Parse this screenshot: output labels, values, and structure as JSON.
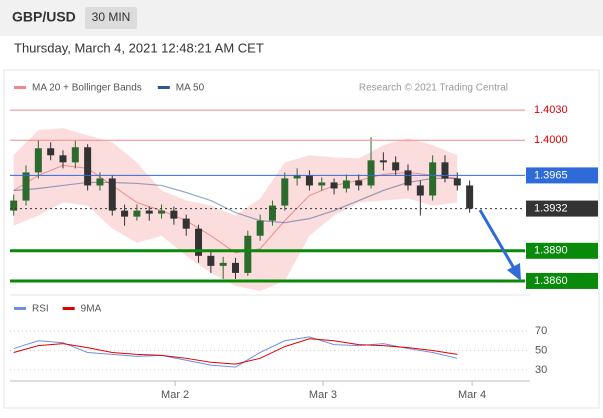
{
  "header": {
    "symbol": "GBP/USD",
    "interval": "30 MIN",
    "timestamp": "Thursday, March 4, 2021 12:48:21 AM CET"
  },
  "chart_data": [
    {
      "type": "candlestick",
      "legend": [
        {
          "name": "MA 20 + Bollinger Bands",
          "color": "#f08a8a"
        },
        {
          "name": "MA 50",
          "color": "#2f5597"
        }
      ],
      "credit": "Research © 2021 Trading Central",
      "x": [
        0,
        1,
        2,
        3,
        4,
        5,
        6,
        7,
        8,
        9,
        10,
        11,
        12,
        13,
        14,
        15,
        16,
        17,
        18,
        19,
        20,
        21,
        22,
        23,
        24,
        25,
        26,
        27,
        28,
        29,
        30,
        31,
        32,
        33,
        34,
        35,
        36,
        37
      ],
      "open": [
        1.393,
        1.394,
        1.3968,
        1.3992,
        1.3985,
        1.3978,
        1.3993,
        1.3955,
        1.3962,
        1.393,
        1.3924,
        1.393,
        1.3927,
        1.393,
        1.3922,
        1.3912,
        1.3885,
        1.3875,
        1.3878,
        1.3868,
        1.3905,
        1.392,
        1.3935,
        1.3962,
        1.3965,
        1.3955,
        1.3958,
        1.3952,
        1.396,
        1.3955,
        1.398,
        1.3978,
        1.397,
        1.3955,
        1.3945,
        1.3978,
        1.3962,
        1.3955
      ],
      "high": [
        1.3946,
        1.3975,
        1.4,
        1.3998,
        1.399,
        1.4,
        1.3996,
        1.3968,
        1.3965,
        1.3936,
        1.3936,
        1.3934,
        1.3936,
        1.3934,
        1.3926,
        1.3916,
        1.389,
        1.3884,
        1.3883,
        1.391,
        1.3926,
        1.394,
        1.3968,
        1.3972,
        1.397,
        1.3963,
        1.3962,
        1.3966,
        1.3966,
        1.4003,
        1.3988,
        1.3984,
        1.3976,
        1.396,
        1.3985,
        1.3985,
        1.3968,
        1.396
      ],
      "low": [
        1.3925,
        1.3935,
        1.3962,
        1.398,
        1.3972,
        1.3972,
        1.395,
        1.395,
        1.3925,
        1.3915,
        1.392,
        1.392,
        1.3922,
        1.3916,
        1.3905,
        1.3878,
        1.3868,
        1.3862,
        1.3862,
        1.3865,
        1.39,
        1.3915,
        1.393,
        1.3955,
        1.395,
        1.395,
        1.3946,
        1.3948,
        1.395,
        1.3952,
        1.397,
        1.3965,
        1.395,
        1.3925,
        1.394,
        1.3958,
        1.395,
        1.3928
      ],
      "close": [
        1.394,
        1.3968,
        1.3992,
        1.3985,
        1.3978,
        1.3993,
        1.3955,
        1.3962,
        1.393,
        1.3924,
        1.393,
        1.3927,
        1.393,
        1.3922,
        1.3912,
        1.3885,
        1.3875,
        1.3878,
        1.3868,
        1.3905,
        1.392,
        1.3935,
        1.3962,
        1.3965,
        1.3955,
        1.3958,
        1.3952,
        1.396,
        1.3955,
        1.398,
        1.3978,
        1.397,
        1.3955,
        1.3945,
        1.3978,
        1.3962,
        1.3955,
        1.3932
      ],
      "up_color": "#2d6a2d",
      "down_color": "#333333",
      "overlay_x": [
        0,
        2,
        4,
        6,
        8,
        10,
        12,
        14,
        16,
        18,
        20,
        22,
        24,
        26,
        28,
        30,
        32,
        34,
        36
      ],
      "ma20": [
        1.395,
        1.3965,
        1.3975,
        1.3972,
        1.3955,
        1.3938,
        1.393,
        1.392,
        1.3905,
        1.3888,
        1.3892,
        1.392,
        1.3945,
        1.3955,
        1.396,
        1.3966,
        1.3968,
        1.3965,
        1.3962
      ],
      "band_upper": [
        1.3985,
        1.401,
        1.4012,
        1.4005,
        1.3998,
        1.3978,
        1.395,
        1.394,
        1.3935,
        1.3925,
        1.3942,
        1.3978,
        1.3985,
        1.3983,
        1.3982,
        1.3995,
        1.4002,
        1.3995,
        1.3985
      ],
      "band_lower": [
        1.3915,
        1.3925,
        1.3938,
        1.3935,
        1.3912,
        1.3898,
        1.3905,
        1.3885,
        1.3868,
        1.3855,
        1.385,
        1.386,
        1.3905,
        1.3925,
        1.3938,
        1.394,
        1.3942,
        1.3935,
        1.3938
      ],
      "band_color": "#fbd5d5",
      "ma50": [
        1.395,
        1.3952,
        1.3955,
        1.3958,
        1.3958,
        1.3957,
        1.3955,
        1.3948,
        1.394,
        1.3928,
        1.392,
        1.3918,
        1.3922,
        1.393,
        1.394,
        1.395,
        1.3958,
        1.3962,
        1.3962
      ],
      "levels": [
        {
          "value": 1.403,
          "label": "1.4030",
          "color": "#f08a8a",
          "text_color": "#e00000",
          "boxed": false,
          "width": 1
        },
        {
          "value": 1.4,
          "label": "1.4000",
          "color": "#f08a8a",
          "text_color": "#e00000",
          "boxed": false,
          "width": 1
        },
        {
          "value": 1.3965,
          "label": "1.3965",
          "color": "#2f6bd8",
          "text_color": "#ffffff",
          "boxed": true,
          "width": 1
        },
        {
          "value": 1.3932,
          "label": "1.3932",
          "color": "#333333",
          "text_color": "#ffffff",
          "boxed": true,
          "width": 1,
          "dashed": true
        },
        {
          "value": 1.389,
          "label": "1.3890",
          "color": "#0a8a0a",
          "text_color": "#ffffff",
          "boxed": true,
          "width": 3
        },
        {
          "value": 1.386,
          "label": "1.3860",
          "color": "#0a8a0a",
          "text_color": "#ffffff",
          "boxed": true,
          "width": 3
        }
      ],
      "xlim": [
        -0.3,
        41.9
      ],
      "ylim": [
        1.3851,
        1.4045
      ],
      "xticks": [
        {
          "value": 13.1,
          "label": "Mar 2"
        },
        {
          "value": 25.1,
          "label": "Mar 3"
        },
        {
          "value": 37.2,
          "label": "Mar 4"
        }
      ]
    },
    {
      "type": "line",
      "x": [
        0,
        2,
        4,
        6,
        8,
        10,
        12,
        14,
        16,
        18,
        20,
        22,
        24,
        26,
        28,
        30,
        32,
        34,
        36
      ],
      "series": [
        {
          "name": "RSI",
          "color": "#6f8fe0",
          "values": [
            52,
            60,
            58,
            48,
            46,
            44,
            45,
            40,
            35,
            33,
            48,
            60,
            64,
            56,
            55,
            57,
            52,
            48,
            42
          ]
        },
        {
          "name": "9MA",
          "color": "#e00000",
          "values": [
            48,
            55,
            57,
            53,
            48,
            46,
            45,
            42,
            38,
            36,
            42,
            54,
            62,
            60,
            56,
            55,
            53,
            50,
            46
          ]
        }
      ],
      "xlim": [
        -0.3,
        41.9
      ],
      "ylim": [
        9.5,
        101.8
      ],
      "yticks": [
        70,
        50,
        30
      ]
    }
  ]
}
